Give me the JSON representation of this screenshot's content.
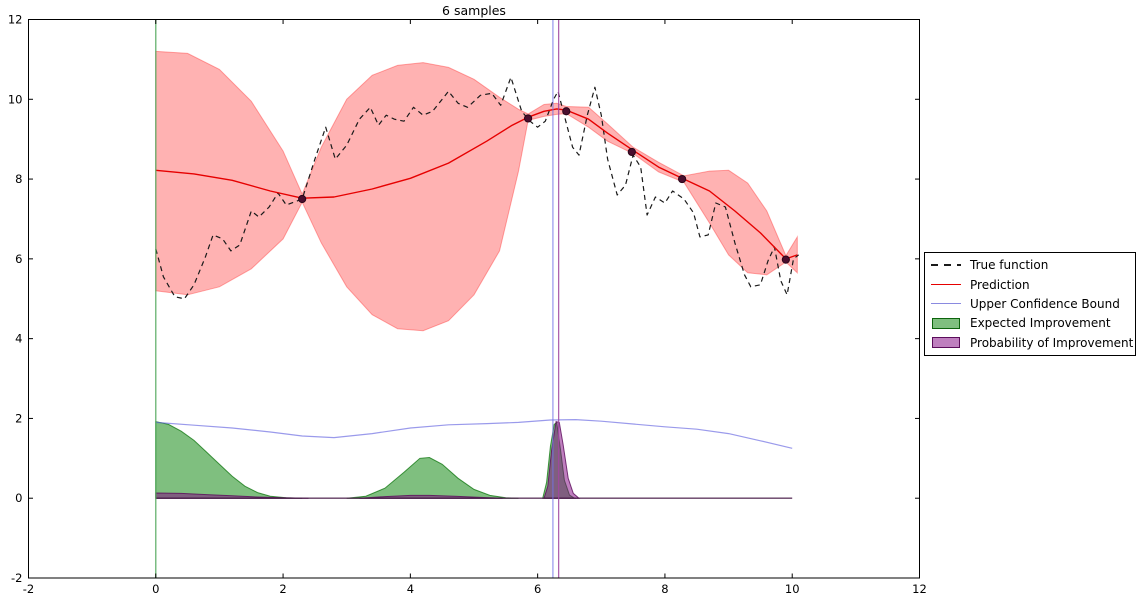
{
  "title": "6 samples",
  "legend": [
    {
      "id": "legend-true-function",
      "label": "True function",
      "swatch": "dash",
      "color": "#1a1a1a"
    },
    {
      "id": "legend-prediction",
      "label": "Prediction",
      "swatch": "line",
      "color": "#e60000"
    },
    {
      "id": "legend-upper-confidence-bound",
      "label": "Upper Confidence Bound",
      "swatch": "line",
      "color": "#8a8ae0"
    },
    {
      "id": "legend-expected-improvement",
      "label": "Expected Improvement",
      "swatch": "patch",
      "color": "rgba(0,128,0,0.5)",
      "edge": "rgba(0,90,0,0.9)"
    },
    {
      "id": "legend-probability-of-improvement",
      "label": "Probability of Improvement",
      "swatch": "patch",
      "color": "rgba(128,0,128,0.5)",
      "edge": "rgba(80,0,80,0.9)"
    }
  ],
  "chart_data": {
    "type": "line",
    "title": "6 samples",
    "xlabel": "",
    "ylabel": "",
    "xlim": [
      -2,
      12
    ],
    "ylim": [
      -2,
      12
    ],
    "xticks": [
      -2,
      0,
      2,
      4,
      6,
      8,
      10,
      12
    ],
    "yticks": [
      -2,
      0,
      2,
      4,
      6,
      8,
      10,
      12
    ],
    "grid": false,
    "legend_position": "outside-right",
    "series": [
      {
        "id": "confidence-band",
        "kind": "band",
        "fill": "rgba(255,0,0,0.3)",
        "edge": "rgba(255,60,60,0.45)",
        "upper": [
          [
            0,
            11.2
          ],
          [
            0.5,
            11.15
          ],
          [
            1.0,
            10.75
          ],
          [
            1.5,
            9.95
          ],
          [
            2.0,
            8.7
          ],
          [
            2.3,
            7.62
          ],
          [
            2.6,
            8.8
          ],
          [
            3.0,
            10.0
          ],
          [
            3.4,
            10.6
          ],
          [
            3.8,
            10.85
          ],
          [
            4.2,
            10.92
          ],
          [
            4.6,
            10.8
          ],
          [
            5.0,
            10.5
          ],
          [
            5.4,
            10.05
          ],
          [
            5.7,
            9.75
          ],
          [
            5.85,
            9.63
          ],
          [
            6.1,
            9.87
          ],
          [
            6.3,
            9.9
          ],
          [
            6.45,
            9.82
          ],
          [
            6.8,
            9.8
          ],
          [
            7.1,
            9.38
          ],
          [
            7.5,
            8.8
          ],
          [
            7.9,
            8.42
          ],
          [
            8.3,
            8.08
          ],
          [
            8.7,
            8.2
          ],
          [
            9.0,
            8.22
          ],
          [
            9.3,
            7.9
          ],
          [
            9.6,
            7.2
          ],
          [
            9.9,
            6.08
          ],
          [
            10.08,
            6.55
          ]
        ],
        "lower": [
          [
            0,
            5.2
          ],
          [
            0.5,
            5.1
          ],
          [
            1.0,
            5.3
          ],
          [
            1.5,
            5.75
          ],
          [
            2.0,
            6.5
          ],
          [
            2.3,
            7.42
          ],
          [
            2.6,
            6.4
          ],
          [
            3.0,
            5.3
          ],
          [
            3.4,
            4.6
          ],
          [
            3.8,
            4.25
          ],
          [
            4.2,
            4.2
          ],
          [
            4.6,
            4.45
          ],
          [
            5.0,
            5.1
          ],
          [
            5.4,
            6.2
          ],
          [
            5.7,
            8.2
          ],
          [
            5.85,
            9.47
          ],
          [
            6.1,
            9.57
          ],
          [
            6.3,
            9.62
          ],
          [
            6.45,
            9.64
          ],
          [
            6.8,
            9.3
          ],
          [
            7.1,
            8.95
          ],
          [
            7.5,
            8.64
          ],
          [
            7.9,
            8.18
          ],
          [
            8.3,
            7.92
          ],
          [
            8.7,
            6.9
          ],
          [
            9.0,
            6.1
          ],
          [
            9.3,
            5.65
          ],
          [
            9.6,
            5.6
          ],
          [
            9.9,
            5.92
          ],
          [
            10.08,
            5.65
          ]
        ]
      },
      {
        "id": "expected-improvement-lobe-1",
        "kind": "area",
        "fill": "rgba(0,128,0,0.5)",
        "edge": "rgba(0,110,0,0.7)",
        "points": [
          [
            0,
            1.92
          ],
          [
            0.2,
            1.85
          ],
          [
            0.4,
            1.68
          ],
          [
            0.6,
            1.45
          ],
          [
            0.8,
            1.15
          ],
          [
            1.0,
            0.85
          ],
          [
            1.2,
            0.55
          ],
          [
            1.4,
            0.3
          ],
          [
            1.6,
            0.14
          ],
          [
            1.8,
            0.05
          ],
          [
            2.05,
            0.01
          ],
          [
            2.3,
            0
          ]
        ]
      },
      {
        "id": "expected-improvement-lobe-2",
        "kind": "area",
        "fill": "rgba(0,128,0,0.5)",
        "edge": "rgba(0,110,0,0.7)",
        "points": [
          [
            3.0,
            0
          ],
          [
            3.3,
            0.05
          ],
          [
            3.6,
            0.25
          ],
          [
            3.9,
            0.65
          ],
          [
            4.15,
            1.0
          ],
          [
            4.3,
            1.02
          ],
          [
            4.5,
            0.85
          ],
          [
            4.75,
            0.5
          ],
          [
            5.0,
            0.22
          ],
          [
            5.25,
            0.07
          ],
          [
            5.5,
            0.01
          ],
          [
            5.7,
            0
          ]
        ]
      },
      {
        "id": "expected-improvement-spike",
        "kind": "area",
        "fill": "rgba(0,128,0,0.5)",
        "edge": "rgba(0,110,0,0.7)",
        "points": [
          [
            6.08,
            0
          ],
          [
            6.14,
            0.4
          ],
          [
            6.2,
            1.3
          ],
          [
            6.26,
            1.85
          ],
          [
            6.3,
            1.9
          ],
          [
            6.36,
            1.2
          ],
          [
            6.42,
            0.45
          ],
          [
            6.5,
            0.08
          ],
          [
            6.58,
            0
          ]
        ]
      },
      {
        "id": "probability-of-improvement-strip-1",
        "kind": "area",
        "fill": "rgba(128,0,128,0.5)",
        "edge": "rgba(90,10,90,0.8)",
        "points": [
          [
            0,
            0.13
          ],
          [
            0.4,
            0.12
          ],
          [
            0.8,
            0.09
          ],
          [
            1.2,
            0.06
          ],
          [
            1.6,
            0.03
          ],
          [
            2.0,
            0.01
          ],
          [
            2.4,
            0
          ]
        ]
      },
      {
        "id": "probability-of-improvement-strip-2",
        "kind": "area",
        "fill": "rgba(128,0,128,0.5)",
        "edge": "rgba(90,10,90,0.8)",
        "points": [
          [
            3.2,
            0
          ],
          [
            3.6,
            0.04
          ],
          [
            4.0,
            0.07
          ],
          [
            4.3,
            0.07
          ],
          [
            4.7,
            0.05
          ],
          [
            5.1,
            0.02
          ],
          [
            5.45,
            0
          ]
        ]
      },
      {
        "id": "probability-of-improvement-spike",
        "kind": "area",
        "fill": "rgba(128,0,128,0.5)",
        "edge": "rgba(90,10,90,0.8)",
        "points": [
          [
            6.1,
            0
          ],
          [
            6.16,
            0.3
          ],
          [
            6.22,
            1.2
          ],
          [
            6.29,
            1.92
          ],
          [
            6.34,
            1.9
          ],
          [
            6.4,
            1.35
          ],
          [
            6.48,
            0.5
          ],
          [
            6.56,
            0.12
          ],
          [
            6.65,
            0
          ]
        ]
      },
      {
        "id": "acquisition-baseline",
        "kind": "line",
        "color": "rgba(70,25,70,0.85)",
        "width": 1.4,
        "points": [
          [
            0,
            0
          ],
          [
            10,
            0
          ]
        ]
      },
      {
        "id": "upper-confidence-bound",
        "kind": "line",
        "color": "rgba(100,100,225,0.65)",
        "width": 1.2,
        "points": [
          [
            0,
            1.9
          ],
          [
            0.6,
            1.83
          ],
          [
            1.2,
            1.76
          ],
          [
            1.8,
            1.66
          ],
          [
            2.3,
            1.56
          ],
          [
            2.8,
            1.52
          ],
          [
            3.4,
            1.62
          ],
          [
            4.0,
            1.76
          ],
          [
            4.6,
            1.84
          ],
          [
            5.2,
            1.87
          ],
          [
            5.7,
            1.9
          ],
          [
            6.2,
            1.96
          ],
          [
            6.6,
            1.97
          ],
          [
            7.0,
            1.93
          ],
          [
            7.5,
            1.86
          ],
          [
            8.0,
            1.79
          ],
          [
            8.5,
            1.73
          ],
          [
            9.0,
            1.62
          ],
          [
            9.5,
            1.44
          ],
          [
            10.0,
            1.25
          ]
        ]
      },
      {
        "id": "true-function",
        "kind": "line",
        "color": "#1a1a1a",
        "width": 1.2,
        "dash": "5,4",
        "points": [
          [
            0,
            6.25
          ],
          [
            0.12,
            5.55
          ],
          [
            0.3,
            5.05
          ],
          [
            0.45,
            5.0
          ],
          [
            0.6,
            5.35
          ],
          [
            0.78,
            6.05
          ],
          [
            0.9,
            6.6
          ],
          [
            1.05,
            6.5
          ],
          [
            1.18,
            6.2
          ],
          [
            1.32,
            6.35
          ],
          [
            1.5,
            7.2
          ],
          [
            1.62,
            7.05
          ],
          [
            1.78,
            7.3
          ],
          [
            1.92,
            7.65
          ],
          [
            2.05,
            7.35
          ],
          [
            2.3,
            7.5
          ],
          [
            2.5,
            8.5
          ],
          [
            2.67,
            9.3
          ],
          [
            2.82,
            8.5
          ],
          [
            3.0,
            8.85
          ],
          [
            3.2,
            9.5
          ],
          [
            3.37,
            9.8
          ],
          [
            3.5,
            9.35
          ],
          [
            3.62,
            9.6
          ],
          [
            3.75,
            9.5
          ],
          [
            3.9,
            9.45
          ],
          [
            4.05,
            9.8
          ],
          [
            4.2,
            9.6
          ],
          [
            4.35,
            9.7
          ],
          [
            4.6,
            10.2
          ],
          [
            4.75,
            9.9
          ],
          [
            4.9,
            9.8
          ],
          [
            5.1,
            10.1
          ],
          [
            5.28,
            10.15
          ],
          [
            5.42,
            9.85
          ],
          [
            5.58,
            10.55
          ],
          [
            5.75,
            9.7
          ],
          [
            5.88,
            9.45
          ],
          [
            6.0,
            9.3
          ],
          [
            6.12,
            9.45
          ],
          [
            6.25,
            10.0
          ],
          [
            6.32,
            10.2
          ],
          [
            6.45,
            9.4
          ],
          [
            6.55,
            8.8
          ],
          [
            6.65,
            8.6
          ],
          [
            6.78,
            9.6
          ],
          [
            6.9,
            10.3
          ],
          [
            7.0,
            9.6
          ],
          [
            7.1,
            8.5
          ],
          [
            7.25,
            7.6
          ],
          [
            7.38,
            7.85
          ],
          [
            7.5,
            8.6
          ],
          [
            7.62,
            8.3
          ],
          [
            7.72,
            7.1
          ],
          [
            7.85,
            7.55
          ],
          [
            8.0,
            7.4
          ],
          [
            8.12,
            7.7
          ],
          [
            8.3,
            7.5
          ],
          [
            8.45,
            7.15
          ],
          [
            8.55,
            6.55
          ],
          [
            8.68,
            6.6
          ],
          [
            8.8,
            7.4
          ],
          [
            8.95,
            7.3
          ],
          [
            9.1,
            6.4
          ],
          [
            9.25,
            5.6
          ],
          [
            9.35,
            5.3
          ],
          [
            9.5,
            5.35
          ],
          [
            9.62,
            5.95
          ],
          [
            9.72,
            6.3
          ],
          [
            9.82,
            5.45
          ],
          [
            9.92,
            5.1
          ],
          [
            10.02,
            6.0
          ],
          [
            10.1,
            6.1
          ]
        ]
      },
      {
        "id": "prediction",
        "kind": "line",
        "color": "#e60000",
        "width": 1.4,
        "points": [
          [
            0,
            8.22
          ],
          [
            0.6,
            8.13
          ],
          [
            1.2,
            7.97
          ],
          [
            1.8,
            7.7
          ],
          [
            2.3,
            7.52
          ],
          [
            2.8,
            7.55
          ],
          [
            3.4,
            7.75
          ],
          [
            4.0,
            8.02
          ],
          [
            4.6,
            8.4
          ],
          [
            5.2,
            8.95
          ],
          [
            5.6,
            9.35
          ],
          [
            5.85,
            9.55
          ],
          [
            6.1,
            9.7
          ],
          [
            6.3,
            9.76
          ],
          [
            6.45,
            9.73
          ],
          [
            6.8,
            9.5
          ],
          [
            7.1,
            9.15
          ],
          [
            7.5,
            8.72
          ],
          [
            7.9,
            8.3
          ],
          [
            8.3,
            8.0
          ],
          [
            8.7,
            7.7
          ],
          [
            9.1,
            7.2
          ],
          [
            9.5,
            6.65
          ],
          [
            9.9,
            6.0
          ],
          [
            10.08,
            6.1
          ]
        ]
      },
      {
        "id": "sample-origin-vline",
        "kind": "vline",
        "x": 0,
        "color": "rgba(85,170,95,0.9)",
        "width": 1.3
      },
      {
        "id": "ucb-argmax-vline",
        "kind": "vline",
        "x": 6.24,
        "color": "rgba(115,115,230,0.75)",
        "width": 1.2
      },
      {
        "id": "pi-argmax-vline",
        "kind": "vline",
        "x": 6.33,
        "color": "rgba(160,70,160,0.85)",
        "width": 1.3
      },
      {
        "id": "sample-points",
        "kind": "scatter",
        "fill": "#4a0e2e",
        "edge": "#2b0518",
        "size": 3.6,
        "points": [
          [
            2.3,
            7.5
          ],
          [
            5.85,
            9.52
          ],
          [
            6.45,
            9.7
          ],
          [
            7.48,
            8.68
          ],
          [
            8.27,
            8.0
          ],
          [
            9.9,
            5.98
          ]
        ]
      }
    ]
  }
}
